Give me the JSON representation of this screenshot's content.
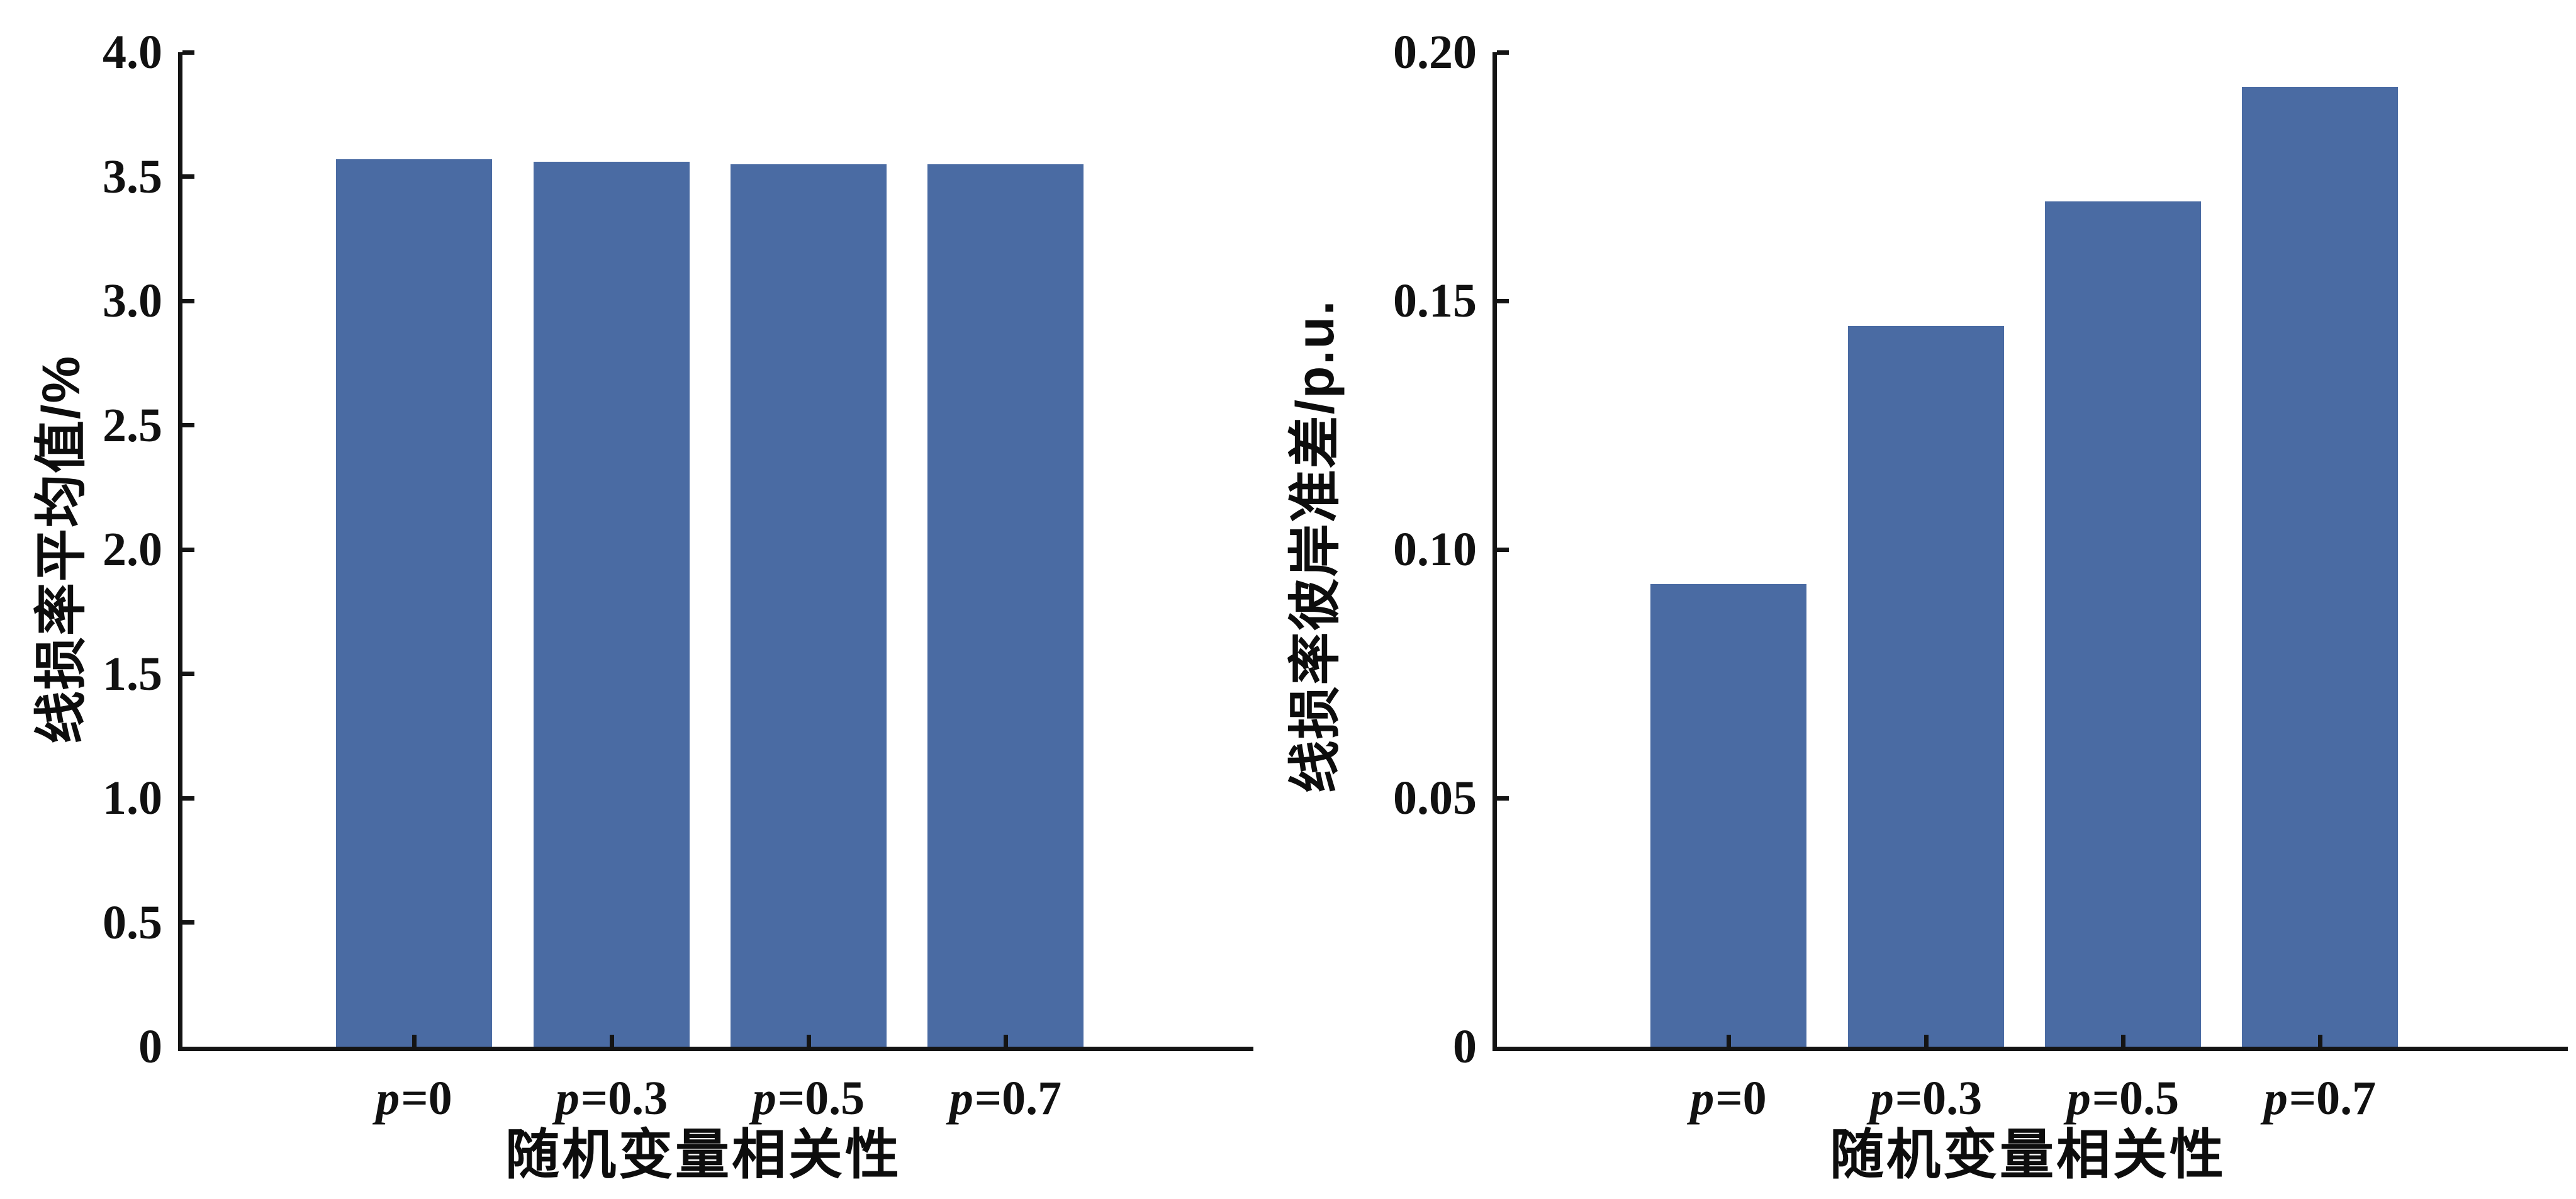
{
  "figure": {
    "background": "#ffffff",
    "axis_color": "#141414",
    "bar_color": "#4a6ba3"
  },
  "chart_data": [
    {
      "type": "bar",
      "title": "",
      "categories": [
        "p=0",
        "p=0.3",
        "p=0.5",
        "p=0.7"
      ],
      "values": [
        3.57,
        3.56,
        3.55,
        3.55
      ],
      "xlabel": "随机变量相关性",
      "ylabel": "线损率平均值/%",
      "ylim": [
        0,
        4.0
      ],
      "yticks": [
        {
          "value": 0,
          "label": "0"
        },
        {
          "value": 0.5,
          "label": "0.5"
        },
        {
          "value": 1.0,
          "label": "1.0"
        },
        {
          "value": 1.5,
          "label": "1.5"
        },
        {
          "value": 2.0,
          "label": "2.0"
        },
        {
          "value": 2.5,
          "label": "2.5"
        },
        {
          "value": 3.0,
          "label": "3.0"
        },
        {
          "value": 3.5,
          "label": "3.5"
        },
        {
          "value": 4.0,
          "label": "4.0"
        }
      ],
      "grid": false,
      "legend_position": "none"
    },
    {
      "type": "bar",
      "title": "",
      "categories": [
        "p=0",
        "p=0.3",
        "p=0.5",
        "p=0.7"
      ],
      "values": [
        0.093,
        0.145,
        0.17,
        0.193
      ],
      "xlabel": "随机变量相关性",
      "ylabel": "线损率彼岸准差/p.u.",
      "ylim": [
        0,
        0.2
      ],
      "yticks": [
        {
          "value": 0,
          "label": "0"
        },
        {
          "value": 0.05,
          "label": "0.05"
        },
        {
          "value": 0.1,
          "label": "0.10"
        },
        {
          "value": 0.15,
          "label": "0.15"
        },
        {
          "value": 0.2,
          "label": "0.20"
        }
      ],
      "grid": false,
      "legend_position": "none"
    }
  ]
}
